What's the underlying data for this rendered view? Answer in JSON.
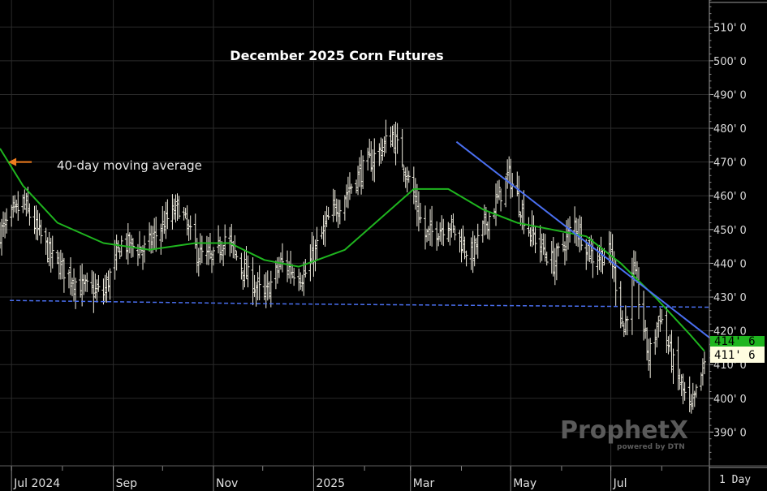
{
  "chart_data": {
    "type": "bar",
    "subtype": "ohlc",
    "title": "December 2025 Corn Futures",
    "period": "1 Day",
    "last_price_label": "411' 6",
    "last_price": 411.75,
    "ma_price_label": "414' 6",
    "ma_value": 414.75,
    "y_axis": {
      "ticks": [
        390,
        400,
        410,
        420,
        430,
        440,
        450,
        460,
        470,
        480,
        490,
        500,
        510
      ],
      "tick_labels": [
        "390' 0",
        "400' 0",
        "410' 0",
        "420' 0",
        "430' 0",
        "440' 0",
        "450' 0",
        "460' 0",
        "470' 0",
        "480' 0",
        "490' 0",
        "500' 0",
        "510' 0"
      ],
      "ylim": [
        380,
        518
      ],
      "side": "right"
    },
    "x_axis": {
      "labels": [
        "Jul 2024",
        "Sep",
        "Nov",
        "2025",
        "Mar",
        "May",
        "Jul"
      ],
      "label_dates": [
        "2024-07-01",
        "2024-09-01",
        "2024-11-01",
        "2025-01-01",
        "2025-03-01",
        "2025-05-01",
        "2025-07-01"
      ],
      "xlim": [
        "2024-06-24",
        "2025-08-30"
      ]
    },
    "series": [
      {
        "type": "ohlc",
        "color": "#f2efe2",
        "anchors": [
          [
            "2024-06-24",
            449
          ],
          [
            "2024-07-08",
            458
          ],
          [
            "2024-07-25",
            442
          ],
          [
            "2024-08-12",
            433
          ],
          [
            "2024-08-26",
            431
          ],
          [
            "2024-09-06",
            446
          ],
          [
            "2024-09-20",
            444
          ],
          [
            "2024-10-04",
            453
          ],
          [
            "2024-10-11",
            457
          ],
          [
            "2024-10-22",
            443
          ],
          [
            "2024-11-01",
            441
          ],
          [
            "2024-11-08",
            448
          ],
          [
            "2024-11-22",
            436
          ],
          [
            "2024-12-02",
            430
          ],
          [
            "2024-12-12",
            440
          ],
          [
            "2024-12-26",
            436
          ],
          [
            "2025-01-10",
            453
          ],
          [
            "2025-01-28",
            466
          ],
          [
            "2025-02-18",
            478
          ],
          [
            "2025-02-26",
            468
          ],
          [
            "2025-03-10",
            448
          ],
          [
            "2025-03-24",
            452
          ],
          [
            "2025-04-07",
            442
          ],
          [
            "2025-04-16",
            452
          ],
          [
            "2025-04-30",
            466
          ],
          [
            "2025-05-12",
            450
          ],
          [
            "2025-05-27",
            440
          ],
          [
            "2025-06-09",
            452
          ],
          [
            "2025-06-20",
            442
          ],
          [
            "2025-07-01",
            443
          ],
          [
            "2025-07-09",
            420
          ],
          [
            "2025-07-15",
            438
          ],
          [
            "2025-07-24",
            412
          ],
          [
            "2025-07-31",
            425
          ],
          [
            "2025-08-08",
            410
          ],
          [
            "2025-08-14",
            402
          ],
          [
            "2025-08-19",
            396
          ],
          [
            "2025-08-27",
            410
          ]
        ]
      },
      {
        "type": "line",
        "color": "#1fb51f",
        "points": [
          [
            "2024-06-24",
            474
          ],
          [
            "2024-07-08",
            463
          ],
          [
            "2024-07-29",
            452
          ],
          [
            "2024-08-26",
            446
          ],
          [
            "2024-09-23",
            444
          ],
          [
            "2024-10-21",
            446
          ],
          [
            "2024-11-11",
            446
          ],
          [
            "2024-12-02",
            441
          ],
          [
            "2024-12-23",
            439
          ],
          [
            "2025-01-20",
            444
          ],
          [
            "2025-02-10",
            453
          ],
          [
            "2025-03-03",
            462
          ],
          [
            "2025-03-24",
            462
          ],
          [
            "2025-04-14",
            456
          ],
          [
            "2025-05-05",
            452
          ],
          [
            "2025-05-26",
            450
          ],
          [
            "2025-06-16",
            448
          ],
          [
            "2025-07-07",
            440
          ],
          [
            "2025-07-28",
            430
          ],
          [
            "2025-08-18",
            419
          ],
          [
            "2025-08-27",
            414
          ]
        ]
      },
      {
        "type": "trendline",
        "color": "#4a6ff0",
        "points": [
          [
            "2025-03-29",
            476
          ],
          [
            "2025-08-30",
            418
          ]
        ]
      },
      {
        "type": "support",
        "color": "#4a6ff0",
        "points": [
          [
            "2024-06-30",
            429
          ],
          [
            "2024-12-06",
            428
          ],
          [
            "2025-08-30",
            427
          ]
        ]
      }
    ],
    "annotations": [
      {
        "text": "40-day moving average",
        "arrow_color": "#f07d1f",
        "points_to": [
          "2024-06-27",
          470
        ]
      }
    ],
    "brand": {
      "name": "ProphetX",
      "tagline": "powered by DTN"
    }
  }
}
